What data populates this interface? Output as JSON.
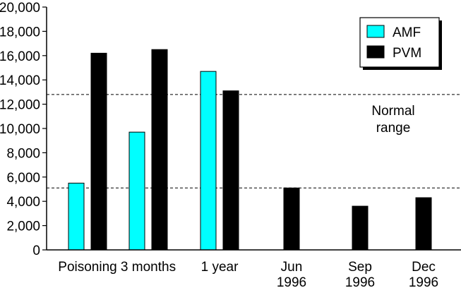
{
  "chart_data": {
    "type": "bar",
    "title": "",
    "xlabel": "",
    "ylabel": "",
    "ylim": [
      0,
      20000
    ],
    "yticks": [
      0,
      2000,
      4000,
      6000,
      8000,
      10000,
      12000,
      14000,
      16000,
      18000,
      20000
    ],
    "ytick_labels": [
      "0",
      "2,000",
      "4,000",
      "6,000",
      "8,000",
      "10,000",
      "12,000",
      "14,000",
      "16,000",
      "18,000",
      "20,000"
    ],
    "categories": [
      [
        "Poisoning"
      ],
      [
        "3 months"
      ],
      [
        "1 year"
      ],
      [
        "Jun",
        "1996"
      ],
      [
        "Sep",
        "1996"
      ],
      [
        "Dec",
        "1996"
      ]
    ],
    "series": [
      {
        "name": "AMF",
        "color": "#00ffff",
        "values": [
          5500,
          9700,
          14700,
          null,
          null,
          null
        ]
      },
      {
        "name": "PVM",
        "color": "#000000",
        "values": [
          16200,
          16500,
          13100,
          5100,
          3600,
          4300
        ]
      }
    ],
    "reference_lines": [
      {
        "value": 12800,
        "style": "dashed"
      },
      {
        "value": 5100,
        "style": "dashed"
      }
    ],
    "annotation": [
      "Normal",
      "range"
    ],
    "legend_position": "top-right",
    "grid": false
  }
}
